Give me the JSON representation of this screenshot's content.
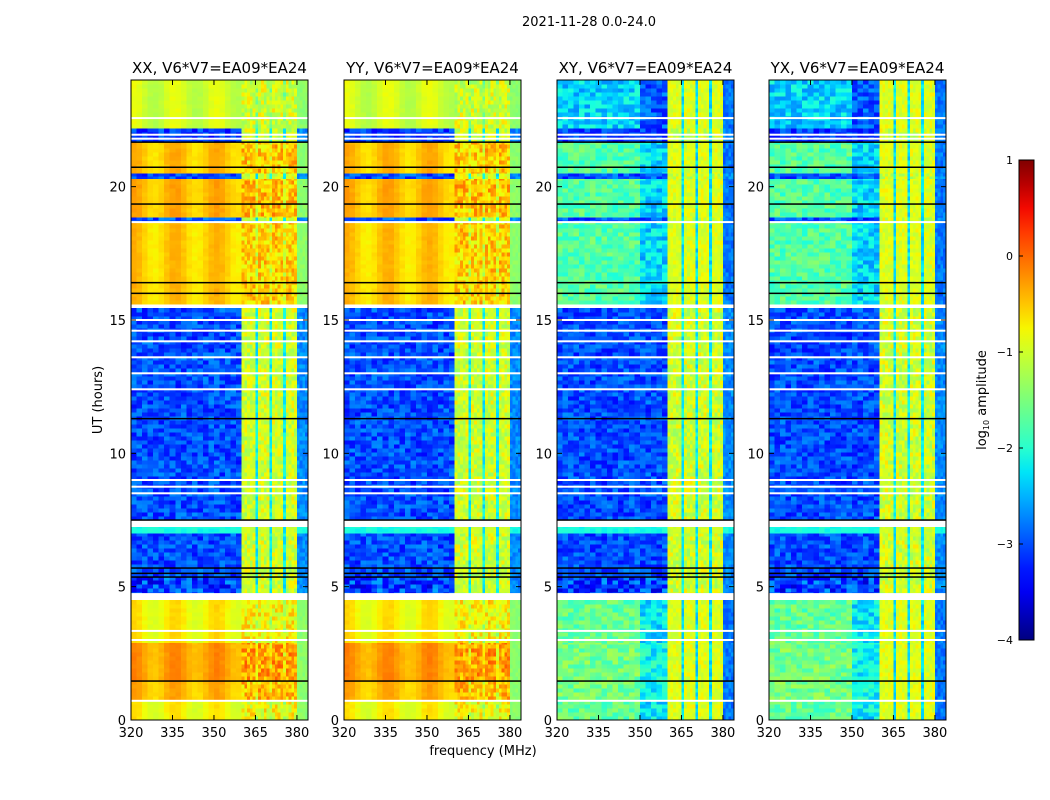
{
  "chart_data": {
    "type": "heatmap",
    "title": "2021-11-28 0.0-24.0",
    "xlabel": "frequency (MHz)",
    "ylabel": "UT (hours)",
    "xlim": [
      320,
      384
    ],
    "ylim": [
      0,
      24
    ],
    "xticks": [
      320,
      335,
      350,
      365,
      380
    ],
    "yticks": [
      0,
      5,
      10,
      15,
      20
    ],
    "panels": [
      {
        "title": "XX, V6*V7=EA09*EA24",
        "pol": "parallel"
      },
      {
        "title": "YY, V6*V7=EA09*EA24",
        "pol": "parallel"
      },
      {
        "title": "XY, V6*V7=EA09*EA24",
        "pol": "cross"
      },
      {
        "title": "YX, V6*V7=EA09*EA24",
        "pol": "cross"
      }
    ],
    "colorbar": {
      "label_main": "log",
      "label_sub": "10",
      "label_rest": " amplitude",
      "range": [
        -4,
        1
      ],
      "ticks": [
        -4,
        -3,
        -2,
        -1,
        0,
        1
      ],
      "tick_labels": [
        "−4",
        "−3",
        "−2",
        "−1",
        "0",
        "1"
      ],
      "colormap": "jet"
    },
    "segments": [
      {
        "t": [
          0.0,
          0.7
        ],
        "state": "bright",
        "parallel_level": -0.8,
        "cross_level": -1.8
      },
      {
        "t": [
          0.7,
          1.46
        ],
        "state": "bright",
        "parallel_level": -0.45,
        "cross_level": -1.7
      },
      {
        "t": [
          1.46,
          2.9
        ],
        "state": "bright",
        "parallel_level": -0.3,
        "cross_level": -1.7
      },
      {
        "t": [
          2.9,
          4.5
        ],
        "state": "bright",
        "parallel_level": -0.75,
        "cross_level": -1.8
      },
      {
        "t": [
          4.5,
          4.69
        ],
        "state": "flagged"
      },
      {
        "t": [
          4.69,
          5.36
        ],
        "state": "dim-noisy",
        "parallel_level": -3.1,
        "cross_level": -3.1
      },
      {
        "t": [
          5.36,
          7.0
        ],
        "state": "dim",
        "parallel_level": -3.0,
        "cross_level": -3.0
      },
      {
        "t": [
          7.0,
          7.24
        ],
        "state": "cyan",
        "parallel_level": -2.1,
        "cross_level": -2.1
      },
      {
        "t": [
          7.24,
          7.5
        ],
        "state": "flagged"
      },
      {
        "t": [
          7.5,
          15.45
        ],
        "state": "dim",
        "parallel_level": -3.0,
        "cross_level": -3.0
      },
      {
        "t": [
          15.45,
          15.6
        ],
        "state": "flagged"
      },
      {
        "t": [
          15.6,
          18.67
        ],
        "state": "bright",
        "parallel_level": -0.55,
        "cross_level": -1.9
      },
      {
        "t": [
          18.67,
          18.86
        ],
        "state": "dim",
        "parallel_level": -3.0,
        "cross_level": -3.0
      },
      {
        "t": [
          18.86,
          20.3
        ],
        "state": "bright",
        "parallel_level": -0.45,
        "cross_level": -1.9
      },
      {
        "t": [
          20.3,
          20.5
        ],
        "state": "dim",
        "parallel_level": -3.0,
        "cross_level": -3.0
      },
      {
        "t": [
          20.5,
          21.67
        ],
        "state": "bright",
        "parallel_level": -0.5,
        "cross_level": -1.9
      },
      {
        "t": [
          21.67,
          22.2
        ],
        "state": "dim",
        "parallel_level": -3.1,
        "cross_level": -3.1
      },
      {
        "t": [
          22.2,
          24.0
        ],
        "state": "bright",
        "parallel_level": -1.0,
        "cross_level": -2.5
      }
    ],
    "rfi": {
      "band": [
        360.5,
        380
      ],
      "gaps": [
        [
          365,
          366
        ],
        [
          370,
          371
        ],
        [
          375,
          376
        ]
      ],
      "level": -1.0
    },
    "flagged_lines": [
      0.72,
      3.0,
      3.34,
      4.72,
      8.5,
      8.75,
      9.0,
      12.4,
      13.0,
      13.6,
      14.2,
      14.6,
      15.0,
      18.67,
      21.8,
      21.95,
      22.57
    ],
    "black_lines": [
      1.46,
      5.36,
      5.5,
      5.7,
      7.5,
      11.3,
      16.0,
      16.4,
      19.35,
      20.73,
      21.67
    ]
  }
}
